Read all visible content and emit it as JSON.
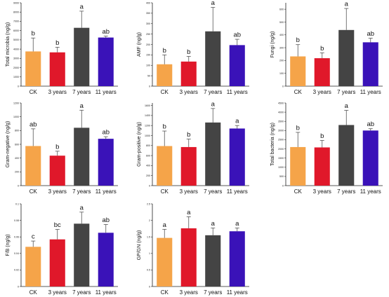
{
  "colors": {
    "CK": "#f5a449",
    "3 years": "#e0182a",
    "7 years": "#444444",
    "11 years": "#3a12b8",
    "axis": "#222222",
    "error_bar": "#555555"
  },
  "chart_data": [
    {
      "type": "bar",
      "ylabel": "Total microbia (ng/g)",
      "categories": [
        "CK",
        "3 years",
        "7 years",
        "11 years"
      ],
      "values": [
        3750,
        3650,
        6300,
        5250
      ],
      "errors": [
        1450,
        550,
        1800,
        150
      ],
      "significance": [
        "b",
        "b",
        "a",
        "ab"
      ],
      "ylim": [
        0,
        9000
      ],
      "yticks": [
        0,
        1000,
        2000,
        3000,
        4000,
        5000,
        6000,
        7000,
        8000,
        9000
      ]
    },
    {
      "type": "bar",
      "ylabel": "AMF (ng/g)",
      "categories": [
        "CK",
        "3 years",
        "7 years",
        "11 years"
      ],
      "values": [
        105,
        118,
        263,
        197
      ],
      "errors": [
        45,
        25,
        115,
        28
      ],
      "significance": [
        "b",
        "b",
        "a",
        "ab"
      ],
      "ylim": [
        0,
        400
      ],
      "yticks": [
        0,
        50,
        100,
        150,
        200,
        250,
        300,
        350,
        400
      ]
    },
    {
      "type": "bar",
      "ylabel": "Fungi (ng/g)",
      "categories": [
        "CK",
        "3 years",
        "7 years",
        "11 years"
      ],
      "values": [
        232,
        218,
        438,
        342
      ],
      "errors": [
        92,
        42,
        168,
        32
      ],
      "significance": [
        "b",
        "b",
        "a",
        "ab"
      ],
      "ylim": [
        0,
        650
      ],
      "yticks": [
        0,
        100,
        200,
        300,
        400,
        500,
        600
      ]
    },
    {
      "type": "bar",
      "ylabel": "Gram-negative (ng/g)",
      "categories": [
        "CK",
        "3 years",
        "7 years",
        "11 years"
      ],
      "values": [
        575,
        435,
        840,
        680
      ],
      "errors": [
        250,
        65,
        255,
        30
      ],
      "significance": [
        "ab",
        "b",
        "a",
        "ab"
      ],
      "ylim": [
        0,
        1200
      ],
      "yticks": [
        0,
        200,
        400,
        600,
        800,
        1000,
        1200
      ]
    },
    {
      "type": "bar",
      "ylabel": "Gram-positive (ng/g)",
      "categories": [
        "CK",
        "3 years",
        "7 years",
        "11 years"
      ],
      "values": [
        790,
        770,
        1260,
        1140
      ],
      "errors": [
        300,
        160,
        280,
        60
      ],
      "significance": [
        "b",
        "b",
        "a",
        "a"
      ],
      "ylim": [
        0,
        1650
      ],
      "yticks": [
        0,
        200,
        400,
        600,
        800,
        1000,
        1200,
        1400,
        1600
      ]
    },
    {
      "type": "bar",
      "ylabel": "Total bacteria (ng/g)",
      "categories": [
        "CK",
        "3 years",
        "7 years",
        "11 years"
      ],
      "values": [
        2100,
        2080,
        3300,
        3000
      ],
      "errors": [
        800,
        380,
        800,
        100
      ],
      "significance": [
        "b",
        "b",
        "a",
        "ab"
      ],
      "ylim": [
        0,
        4500
      ],
      "yticks": [
        0,
        500,
        1000,
        1500,
        2000,
        2500,
        3000,
        3500,
        4000,
        4500
      ]
    },
    {
      "type": "bar",
      "ylabel": "F/B (ng/g)",
      "categories": [
        "CK",
        "3 years",
        "7 years",
        "11 years"
      ],
      "values": [
        0.048,
        0.057,
        0.076,
        0.065
      ],
      "errors": [
        0.007,
        0.012,
        0.014,
        0.01
      ],
      "significance": [
        "c",
        "bc",
        "a",
        "ab"
      ],
      "ylim": [
        0,
        0.1
      ],
      "yticks": [
        0,
        0.02,
        0.04,
        0.06,
        0.08,
        0.1
      ]
    },
    {
      "type": "bar",
      "ylabel": "GP/GN (ng/g)",
      "categories": [
        "CK",
        "3 years",
        "7 years",
        "11 years"
      ],
      "values": [
        1.47,
        1.76,
        1.55,
        1.67
      ],
      "errors": [
        0.26,
        0.35,
        0.22,
        0.1
      ],
      "significance": [
        "a",
        "a",
        "a",
        "a"
      ],
      "ylim": [
        0,
        2.5
      ],
      "yticks": [
        0,
        0.5,
        1.0,
        1.5,
        2.0,
        2.5
      ]
    }
  ]
}
